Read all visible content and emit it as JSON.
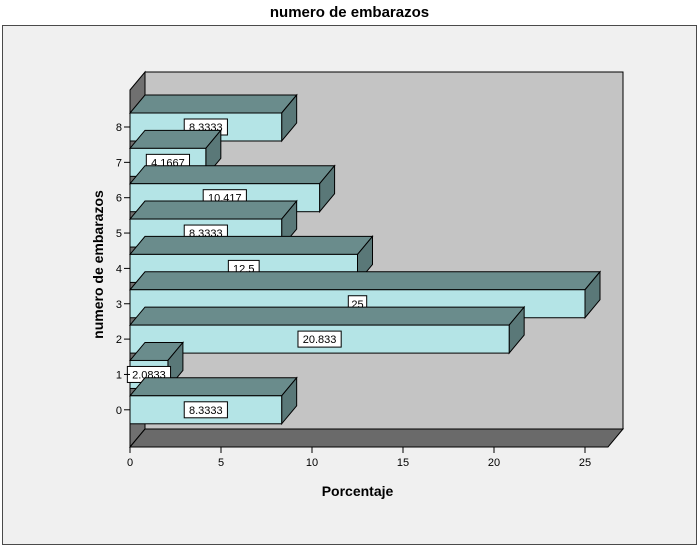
{
  "chart_data": {
    "type": "bar",
    "orientation": "horizontal",
    "title": "numero de embarazos",
    "xlabel": "Porcentaje",
    "ylabel": "numero de embarazos",
    "categories": [
      "0",
      "1",
      "2",
      "3",
      "4",
      "5",
      "6",
      "7",
      "8"
    ],
    "values": [
      8.3333,
      2.0833,
      20.833,
      25,
      12.5,
      8.3333,
      10.417,
      4.1667,
      8.3333
    ],
    "data_labels": [
      "8.3333",
      "2.0833",
      "20.833",
      "25",
      "12.5",
      "8.3333",
      "10.417",
      "4.1667",
      "8.3333"
    ],
    "xlim": [
      0,
      25
    ],
    "xticks": [
      "0",
      "5",
      "10",
      "15",
      "20",
      "25"
    ],
    "style": "3d",
    "grid": false,
    "legend": "none",
    "colors": {
      "bar_face": "#b4e4e6",
      "bar_top": "#6a8c8c",
      "bar_side": "#5a7878",
      "wall": "#c4c4c4",
      "side_wall": "#707070",
      "floor": "#6a6a6a",
      "frame_bg": "#f0f0f0"
    }
  }
}
